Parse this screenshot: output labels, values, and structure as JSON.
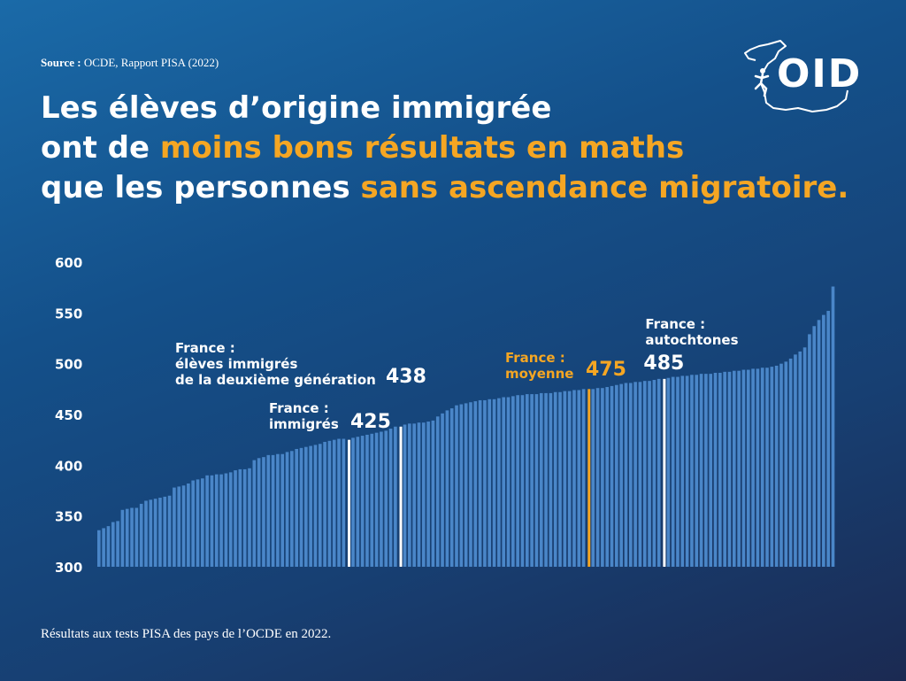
{
  "source": {
    "label": "Source :",
    "text": "OCDE, Rapport PISA (2022)"
  },
  "logo": {
    "text": "OID",
    "icon": "france-map-runner-icon"
  },
  "title": {
    "line1": "Les élèves d’origine immigrée",
    "line2_pre": "ont de ",
    "line2_hl": "moins bons résultats en maths",
    "line3_pre": "que les personnes ",
    "line3_hl": "sans ascendance migratoire."
  },
  "footer": "Résultats aux tests PISA des pays de l’OCDE en 2022.",
  "colors": {
    "bar": "#4a86c8",
    "highlight": "#f5a623",
    "marker": "#ffffff"
  },
  "chart_data": {
    "type": "bar",
    "ylim": [
      300,
      600
    ],
    "yticks": [
      300,
      350,
      400,
      450,
      500,
      550,
      600
    ],
    "values": [
      336,
      338,
      340,
      344,
      345,
      356,
      357,
      358,
      358,
      362,
      365,
      366,
      367,
      368,
      369,
      370,
      378,
      379,
      380,
      382,
      385,
      386,
      387,
      390,
      390,
      391,
      391,
      392,
      393,
      395,
      396,
      396,
      397,
      405,
      407,
      408,
      410,
      410,
      411,
      411,
      413,
      414,
      416,
      417,
      418,
      419,
      420,
      421,
      423,
      424,
      425,
      426,
      426,
      427,
      428,
      429,
      430,
      431,
      432,
      433,
      434,
      436,
      438,
      440,
      441,
      441,
      442,
      442,
      443,
      444,
      448,
      451,
      454,
      456,
      459,
      460,
      461,
      462,
      463,
      464,
      464,
      465,
      465,
      466,
      467,
      467,
      468,
      469,
      469,
      470,
      470,
      470,
      471,
      471,
      471,
      472,
      472,
      473,
      473,
      474,
      474,
      475,
      475,
      476,
      476,
      477,
      478,
      479,
      480,
      481,
      481,
      482,
      482,
      483,
      483,
      484,
      485,
      486,
      487,
      487,
      488,
      488,
      489,
      489,
      490,
      490,
      490,
      491,
      491,
      492,
      492,
      493,
      493,
      494,
      494,
      495,
      495,
      496,
      496,
      497,
      498,
      500,
      502,
      505,
      509,
      512,
      516,
      529,
      537,
      543,
      548,
      552,
      576
    ],
    "annotations": [
      {
        "label_lines": [
          "France :",
          "immigrés"
        ],
        "value": "425",
        "y": 425,
        "after_index": 52,
        "color": "white"
      },
      {
        "label_lines": [
          "France :",
          "élèves immigrés",
          "de la deuxième génération"
        ],
        "value": "438",
        "y": 438,
        "after_index": 62,
        "color": "white"
      },
      {
        "label_lines": [
          "France :",
          "moyenne"
        ],
        "value": "475",
        "y": 475,
        "after_index": 101,
        "color": "orange"
      },
      {
        "label_lines": [
          "France :",
          "autochtones"
        ],
        "value": "485",
        "y": 485,
        "after_index": 116,
        "color": "white"
      }
    ]
  }
}
